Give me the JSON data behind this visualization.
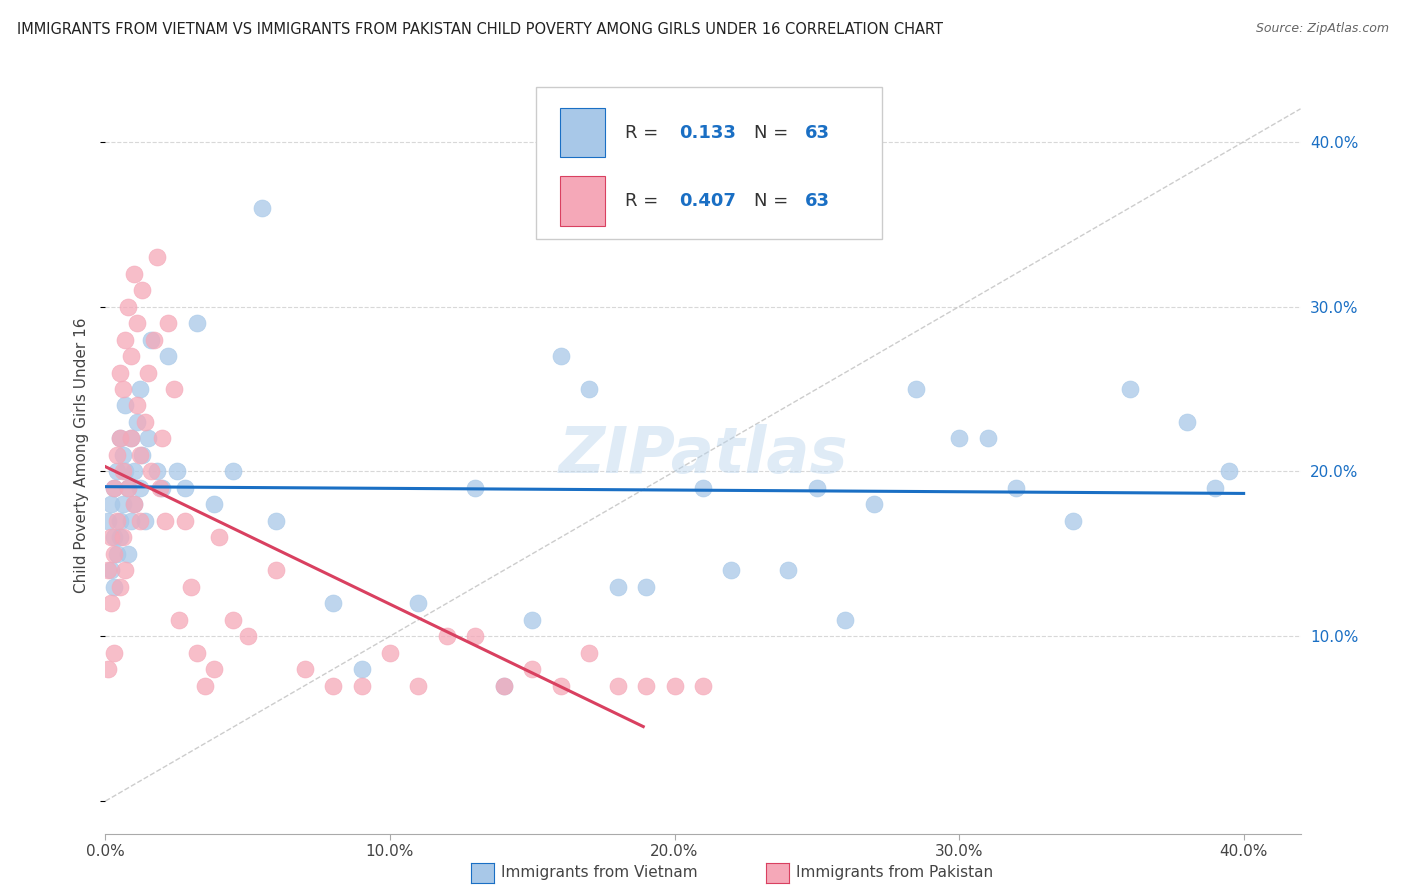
{
  "title": "IMMIGRANTS FROM VIETNAM VS IMMIGRANTS FROM PAKISTAN CHILD POVERTY AMONG GIRLS UNDER 16 CORRELATION CHART",
  "source": "Source: ZipAtlas.com",
  "ylabel": "Child Poverty Among Girls Under 16",
  "xlim": [
    0.0,
    0.42
  ],
  "ylim": [
    -0.02,
    0.44
  ],
  "yticks": [
    0.0,
    0.1,
    0.2,
    0.3,
    0.4
  ],
  "xticks": [
    0.0,
    0.1,
    0.2,
    0.3,
    0.4
  ],
  "xtick_labels": [
    "0.0%",
    "10.0%",
    "20.0%",
    "30.0%",
    "40.0%"
  ],
  "ytick_labels": [
    "",
    "10.0%",
    "20.0%",
    "30.0%",
    "40.0%"
  ],
  "R_vietnam": 0.133,
  "N_vietnam": 63,
  "R_pakistan": 0.407,
  "N_pakistan": 63,
  "color_vietnam": "#a8c8e8",
  "color_pakistan": "#f5a8b8",
  "color_vietnam_line": "#1a6fc4",
  "color_pakistan_line": "#d94060",
  "color_diagonal": "#c0c0c0",
  "watermark": "ZIPatlas",
  "background_color": "#ffffff",
  "grid_color": "#d8d8d8",
  "title_fontsize": 10.5,
  "axis_label_fontsize": 11,
  "tick_fontsize": 11,
  "vietnam_x": [
    0.001,
    0.002,
    0.002,
    0.003,
    0.003,
    0.003,
    0.004,
    0.004,
    0.005,
    0.005,
    0.005,
    0.006,
    0.006,
    0.007,
    0.007,
    0.008,
    0.008,
    0.009,
    0.009,
    0.01,
    0.01,
    0.011,
    0.012,
    0.012,
    0.013,
    0.014,
    0.015,
    0.016,
    0.018,
    0.02,
    0.022,
    0.025,
    0.028,
    0.032,
    0.038,
    0.045,
    0.055,
    0.06,
    0.08,
    0.09,
    0.11,
    0.13,
    0.15,
    0.17,
    0.19,
    0.21,
    0.24,
    0.26,
    0.285,
    0.3,
    0.32,
    0.34,
    0.36,
    0.38,
    0.39,
    0.395,
    0.14,
    0.18,
    0.22,
    0.25,
    0.16,
    0.27,
    0.31
  ],
  "vietnam_y": [
    0.17,
    0.18,
    0.14,
    0.16,
    0.19,
    0.13,
    0.2,
    0.15,
    0.17,
    0.22,
    0.16,
    0.21,
    0.18,
    0.2,
    0.24,
    0.19,
    0.15,
    0.22,
    0.17,
    0.2,
    0.18,
    0.23,
    0.25,
    0.19,
    0.21,
    0.17,
    0.22,
    0.28,
    0.2,
    0.19,
    0.27,
    0.2,
    0.19,
    0.29,
    0.18,
    0.2,
    0.36,
    0.17,
    0.12,
    0.08,
    0.12,
    0.19,
    0.11,
    0.25,
    0.13,
    0.19,
    0.14,
    0.11,
    0.25,
    0.22,
    0.19,
    0.17,
    0.25,
    0.23,
    0.19,
    0.2,
    0.07,
    0.13,
    0.14,
    0.19,
    0.27,
    0.18,
    0.22
  ],
  "pakistan_x": [
    0.001,
    0.001,
    0.002,
    0.002,
    0.003,
    0.003,
    0.003,
    0.004,
    0.004,
    0.005,
    0.005,
    0.005,
    0.006,
    0.006,
    0.006,
    0.007,
    0.007,
    0.008,
    0.008,
    0.009,
    0.009,
    0.01,
    0.01,
    0.011,
    0.011,
    0.012,
    0.012,
    0.013,
    0.014,
    0.015,
    0.016,
    0.017,
    0.018,
    0.019,
    0.02,
    0.021,
    0.022,
    0.024,
    0.026,
    0.028,
    0.03,
    0.032,
    0.035,
    0.038,
    0.04,
    0.045,
    0.05,
    0.06,
    0.07,
    0.08,
    0.09,
    0.1,
    0.11,
    0.12,
    0.13,
    0.14,
    0.15,
    0.16,
    0.17,
    0.18,
    0.19,
    0.2,
    0.21
  ],
  "pakistan_y": [
    0.08,
    0.14,
    0.12,
    0.16,
    0.09,
    0.15,
    0.19,
    0.17,
    0.21,
    0.13,
    0.22,
    0.26,
    0.16,
    0.2,
    0.25,
    0.14,
    0.28,
    0.19,
    0.3,
    0.22,
    0.27,
    0.18,
    0.32,
    0.24,
    0.29,
    0.21,
    0.17,
    0.31,
    0.23,
    0.26,
    0.2,
    0.28,
    0.33,
    0.19,
    0.22,
    0.17,
    0.29,
    0.25,
    0.11,
    0.17,
    0.13,
    0.09,
    0.07,
    0.08,
    0.16,
    0.11,
    0.1,
    0.14,
    0.08,
    0.07,
    0.07,
    0.09,
    0.07,
    0.1,
    0.1,
    0.07,
    0.08,
    0.07,
    0.09,
    0.07,
    0.07,
    0.07,
    0.07
  ]
}
